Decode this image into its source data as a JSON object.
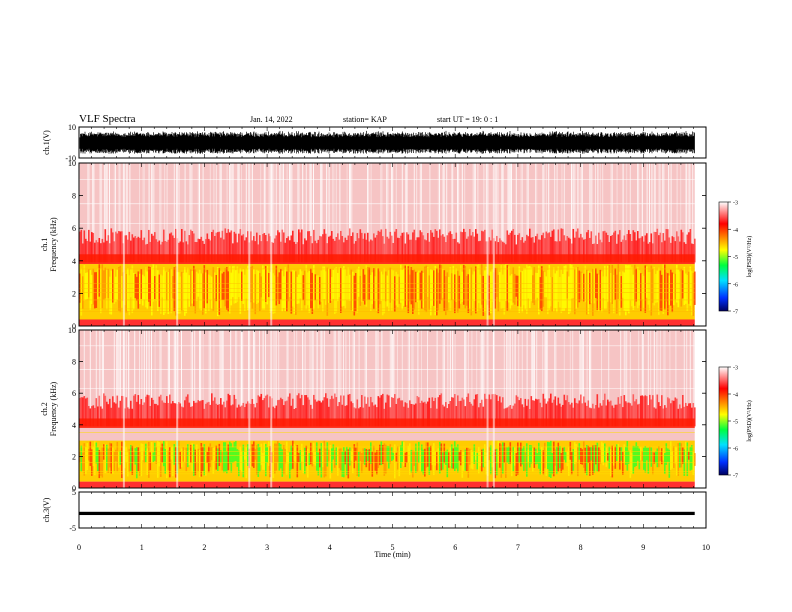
{
  "header": {
    "title": "VLF Spectra",
    "date": "Jan. 14, 2022",
    "station": "station= KAP",
    "start": "start  UT  =   19: 0  : 1"
  },
  "chart_data": [
    {
      "type": "line",
      "panel": "ch1-waveform",
      "ylabel": "ch.1(V)",
      "ylim": [
        -10,
        10
      ],
      "yticks": [
        "10",
        "-10"
      ],
      "xlim": [
        0,
        10
      ],
      "color": "#000000",
      "note_fill": "dense oscillation roughly between -7 and +7 V over 0 - 9.8 min"
    },
    {
      "type": "heatmap",
      "panel": "ch1-spectrogram",
      "ylabel_top": "ch.1",
      "ylabel": "Frequency  (kHz)",
      "ylim": [
        0,
        10
      ],
      "yticks": [
        "0",
        "2",
        "4",
        "6",
        "8",
        "10"
      ],
      "xlim": [
        0,
        10
      ],
      "colorbar": {
        "label": "log(PSD)(V²/Hz)",
        "range": [
          -7,
          -3
        ],
        "ticks": [
          "-3",
          "-4",
          "-5",
          "-6",
          "-7"
        ],
        "colors": [
          "#000060",
          "#0030ff",
          "#00e0ff",
          "#00ff40",
          "#ffff00",
          "#ff8000",
          "#ff0000",
          "#ffffff"
        ]
      }
    },
    {
      "type": "heatmap",
      "panel": "ch2-spectrogram",
      "ylabel_top": "ch.2",
      "ylabel": "Frequency  (kHz)",
      "ylim": [
        0,
        10
      ],
      "yticks": [
        "0",
        "2",
        "4",
        "6",
        "8",
        "10"
      ],
      "xlim": [
        0,
        10
      ],
      "colorbar": {
        "label": "log(PSD)(V²/Hz)",
        "range": [
          -7,
          -3
        ],
        "ticks": [
          "-3",
          "-4",
          "-5",
          "-6",
          "-7"
        ],
        "colors": [
          "#000060",
          "#0030ff",
          "#00e0ff",
          "#00ff40",
          "#ffff00",
          "#ff8000",
          "#ff0000",
          "#ffffff"
        ]
      }
    },
    {
      "type": "line",
      "panel": "ch3-waveform",
      "ylabel": "ch.3(V)",
      "ylim": [
        -5,
        5
      ],
      "yticks": [
        "5",
        "-5"
      ],
      "xlim": [
        0,
        10
      ],
      "color": "#000000",
      "note_fill": "narrow band around -1 V"
    }
  ],
  "xaxis": {
    "label": "Time  (min)",
    "ticks": [
      "0",
      "1",
      "2",
      "3",
      "4",
      "5",
      "6",
      "7",
      "8",
      "9",
      "10"
    ]
  }
}
